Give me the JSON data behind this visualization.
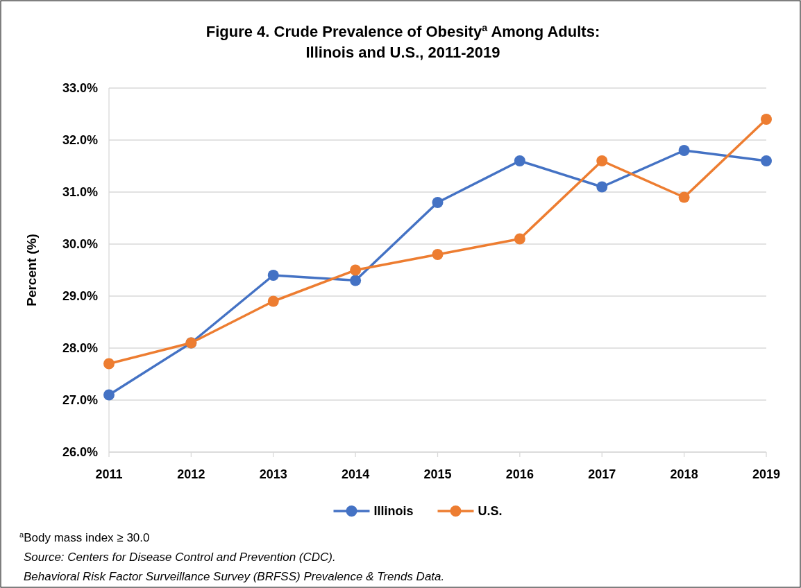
{
  "chart_data": {
    "type": "line",
    "title": "Figure 4. Crude Prevalence of Obesity$^{a}$ Among Adults:\nIllinois and U.S., 2011-2019",
    "ylabel": "Percent (%)",
    "categories": [
      "2011",
      "2012",
      "2013",
      "2014",
      "2015",
      "2016",
      "2017",
      "2018",
      "2019"
    ],
    "series": [
      {
        "name": "Illinois",
        "color": "#4472c4",
        "values": [
          27.1,
          28.1,
          29.4,
          29.3,
          30.8,
          31.6,
          31.1,
          31.8,
          31.6
        ]
      },
      {
        "name": "U.S.",
        "color": "#ed7d31",
        "values": [
          27.7,
          28.1,
          28.9,
          29.5,
          29.8,
          30.1,
          31.6,
          30.9,
          32.4
        ]
      }
    ],
    "ylim": [
      26,
      33
    ],
    "yticks": [
      {
        "value": 26,
        "label": "26.0%"
      },
      {
        "value": 27,
        "label": "27.0%"
      },
      {
        "value": 28,
        "label": "28.0%"
      },
      {
        "value": 29,
        "label": "29.0%"
      },
      {
        "value": 30,
        "label": "30.0%"
      },
      {
        "value": 31,
        "label": "31.0%"
      },
      {
        "value": 32,
        "label": "32.0%"
      },
      {
        "value": 33,
        "label": "33.0%"
      }
    ],
    "grid": "y",
    "legend": "bottom",
    "marker": "circle",
    "line_style": "solid",
    "annotations": [
      "$^{a}$Body mass index ≥ 30.0",
      "Source: Centers for Disease Control and Prevention (CDC).",
      "Behavioral Risk Factor Surveillance Survey (BRFSS) Prevalence & Trends Data."
    ]
  }
}
